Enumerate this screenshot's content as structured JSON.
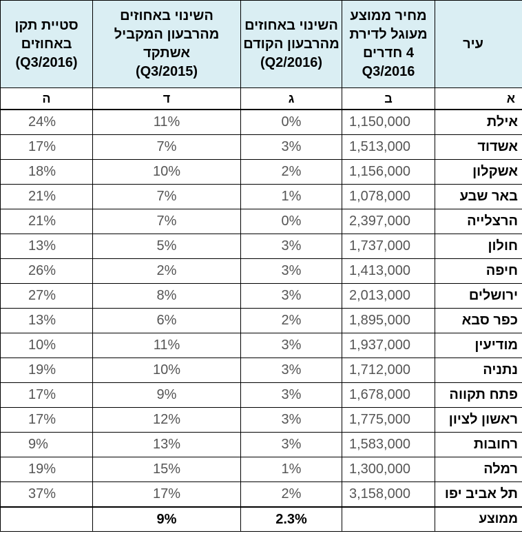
{
  "headers": {
    "city": "עיר",
    "price_lines": [
      "מחיר ממוצע",
      "מעוגל לדירת",
      "4 חדרים",
      "Q3/2016"
    ],
    "q_change_lines": [
      "השינוי באחוזים",
      "מהרבעון הקודם",
      "(Q2/2016)"
    ],
    "y_change_lines": [
      "השינוי באחוזים",
      "מהרבעון המקביל",
      "אשתקד",
      "(Q3/2015)"
    ],
    "vacancy_lines": [
      "סטיית תקן",
      "באחוזים",
      "(Q3/2016)"
    ]
  },
  "letters": [
    "א",
    "ב",
    "ג",
    "ד",
    "ה"
  ],
  "rows": [
    {
      "city": "אילת",
      "price": "1,150,000",
      "q_change": "0%",
      "y_change": "11%",
      "stdev": "24%"
    },
    {
      "city": "אשדוד",
      "price": "1,513,000",
      "q_change": "3%",
      "y_change": "7%",
      "stdev": "17%"
    },
    {
      "city": "אשקלון",
      "price": "1,156,000",
      "q_change": "2%",
      "y_change": "10%",
      "stdev": "18%"
    },
    {
      "city": "באר שבע",
      "price": "1,078,000",
      "q_change": "1%",
      "y_change": "7%",
      "stdev": "21%"
    },
    {
      "city": "הרצלייה",
      "price": "2,397,000",
      "q_change": "0%",
      "y_change": "7%",
      "stdev": "21%"
    },
    {
      "city": "חולון",
      "price": "1,737,000",
      "q_change": "3%",
      "y_change": "5%",
      "stdev": "13%"
    },
    {
      "city": "חיפה",
      "price": "1,413,000",
      "q_change": "3%",
      "y_change": "2%",
      "stdev": "26%"
    },
    {
      "city": "ירושלים",
      "price": "2,013,000",
      "q_change": "3%",
      "y_change": "8%",
      "stdev": "27%"
    },
    {
      "city": "כפר סבא",
      "price": "1,895,000",
      "q_change": "2%",
      "y_change": "6%",
      "stdev": "13%"
    },
    {
      "city": "מודיעין",
      "price": "1,937,000",
      "q_change": "3%",
      "y_change": "11%",
      "stdev": "10%"
    },
    {
      "city": "נתניה",
      "price": "1,712,000",
      "q_change": "3%",
      "y_change": "10%",
      "stdev": "19%"
    },
    {
      "city": "פתח תקווה",
      "price": "1,678,000",
      "q_change": "3%",
      "y_change": "9%",
      "stdev": "17%"
    },
    {
      "city": "ראשון לציון",
      "price": "1,775,000",
      "q_change": "3%",
      "y_change": "12%",
      "stdev": "17%"
    },
    {
      "city": "רחובות",
      "price": "1,583,000",
      "q_change": "3%",
      "y_change": "13%",
      "stdev": "9%"
    },
    {
      "city": "רמלה",
      "price": "1,300,000",
      "q_change": "1%",
      "y_change": "15%",
      "stdev": "19%"
    },
    {
      "city": "תל אביב יפו",
      "price": "3,158,000",
      "q_change": "2%",
      "y_change": "17%",
      "stdev": "37%"
    }
  ],
  "average": {
    "city": "ממוצע",
    "price": "",
    "q_change": "2.3%",
    "y_change": "9%",
    "stdev": ""
  }
}
